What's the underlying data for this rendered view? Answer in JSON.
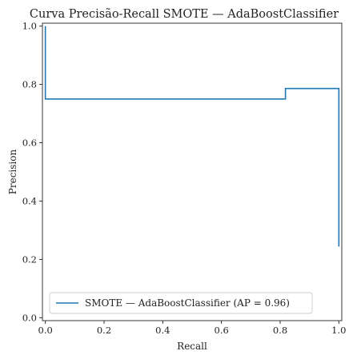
{
  "chart_data": {
    "type": "line",
    "title": "Curva Precisão-Recall SMOTE — AdaBoostClassifier",
    "xlabel": "Recall",
    "ylabel": "Precision",
    "xlim": [
      -0.01,
      1.01
    ],
    "ylim": [
      -0.01,
      1.01
    ],
    "xticks": [
      0.0,
      0.2,
      0.4,
      0.6,
      0.8,
      1.0
    ],
    "yticks": [
      0.0,
      0.2,
      0.4,
      0.6,
      0.8,
      1.0
    ],
    "xtick_labels": [
      "0.0",
      "0.2",
      "0.4",
      "0.6",
      "0.8",
      "1.0"
    ],
    "ytick_labels": [
      "0.0",
      "0.2",
      "0.4",
      "0.6",
      "0.8",
      "1.0"
    ],
    "grid": false,
    "legend_position": "lower-left",
    "series": [
      {
        "name": "SMOTE — AdaBoostClassifier (AP = 0.96)",
        "color": "#1f77b4",
        "drawstyle": "steps-post",
        "recall": [
          1.0,
          1.0,
          0.909,
          0.818,
          0.818,
          0.0
        ],
        "precision": [
          0.244,
          0.786,
          0.786,
          0.769,
          0.75,
          1.0
        ]
      }
    ]
  }
}
